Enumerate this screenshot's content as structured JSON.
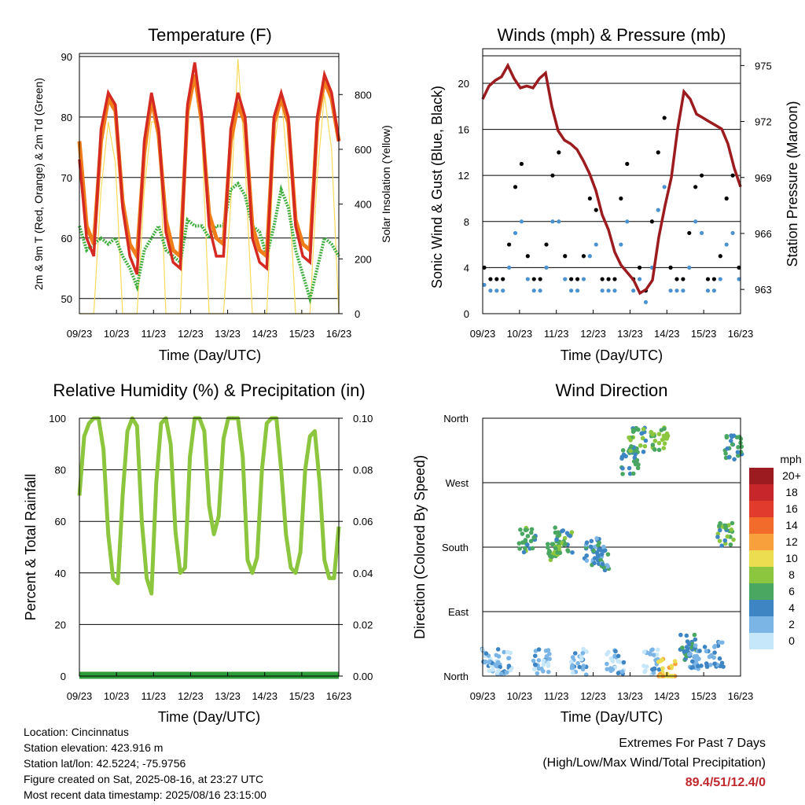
{
  "colors": {
    "temp2m": "#d42a22",
    "temp9m": "#f07d1a",
    "dewpoint": "#3fae3f",
    "insolation": "#f7da5a",
    "wind": "#4a92d0",
    "gust": "#000000",
    "pressure": "#9b1b1f",
    "humidity": "#8cc63e",
    "precip": "#2e9c3a",
    "extremes": "#c0282d"
  },
  "footer": {
    "location": "Location: Cincinnatus",
    "elevation": "Station elevation: 423.916 m",
    "latlon": "Station lat/lon: 42.5224; -75.9756",
    "created": "Figure created on Sat, 2025-08-16, at 23:27 UTC",
    "recent": "Most recent data timestamp: 2025/08/16 23:15:00"
  },
  "extremes": {
    "title": "Extremes For Past 7 Days",
    "subtitle": "(High/Low/Max Wind/Total Precipitation)",
    "values": "89.4/51/12.4/0"
  },
  "chart_data": [
    {
      "type": "line",
      "title": "Temperature (F)",
      "xlabel": "Time (Day/UTC)",
      "ylabel": "2m & 9m T (Red, Orange) & 2m Td (Green)",
      "y2label": "Solar Insolation (Yellow)",
      "x_ticks": [
        "09/23",
        "10/23",
        "11/23",
        "12/23",
        "13/23",
        "14/23",
        "15/23",
        "16/23"
      ],
      "ylim": [
        47.5,
        90.5
      ],
      "y_ticks": [
        50,
        60,
        70,
        80,
        90
      ],
      "y2lim": [
        0,
        950
      ],
      "y2_ticks": [
        0,
        200,
        400,
        600,
        800
      ],
      "grid": "horizontal",
      "series": [
        {
          "key": "temp_2m",
          "y": [
            73,
            60,
            57,
            78,
            84,
            82,
            65,
            57,
            54,
            76,
            84,
            78,
            61,
            56,
            55,
            82,
            89,
            80,
            62,
            57,
            57,
            78,
            84,
            80,
            60,
            56,
            55,
            80,
            84,
            80,
            62,
            57,
            56,
            80,
            87,
            84,
            76
          ]
        },
        {
          "key": "temp_9m",
          "y": [
            76,
            62,
            59,
            76,
            83,
            81,
            66,
            59,
            57,
            74,
            83,
            77,
            63,
            58,
            57,
            81,
            87,
            79,
            64,
            60,
            59,
            76,
            82,
            79,
            62,
            58,
            57,
            79,
            83,
            79,
            63,
            59,
            58,
            79,
            86,
            83,
            76
          ]
        },
        {
          "key": "dewpoint_2m",
          "y": [
            62,
            58,
            59,
            60,
            59,
            60,
            57,
            55,
            52,
            58,
            60,
            62,
            58,
            57,
            56,
            63,
            62,
            62,
            60,
            62,
            62,
            68,
            69,
            67,
            62,
            61,
            57,
            62,
            68,
            65,
            58,
            54,
            50,
            55,
            60,
            59,
            57
          ]
        },
        {
          "key": "solar_insolation",
          "y": [
            0,
            0,
            0,
            450,
            700,
            550,
            0,
            0,
            0,
            450,
            700,
            700,
            0,
            0,
            0,
            700,
            850,
            650,
            0,
            0,
            0,
            400,
            930,
            550,
            0,
            0,
            0,
            600,
            800,
            500,
            0,
            0,
            0,
            500,
            800,
            600,
            0
          ]
        }
      ]
    },
    {
      "type": "line",
      "title": "Winds (mph) & Pressure (mb)",
      "xlabel": "Time (Day/UTC)",
      "ylabel": "Sonic Wind & Gust (Blue, Black)",
      "y2label": "Station Pressure (Maroon)",
      "x_ticks": [
        "09/23",
        "10/23",
        "11/23",
        "12/23",
        "13/23",
        "14/23",
        "15/23",
        "16/23"
      ],
      "ylim": [
        0,
        23
      ],
      "y_ticks": [
        0,
        4,
        8,
        12,
        16,
        20
      ],
      "y2lim": [
        961.7,
        975.9
      ],
      "y2_ticks": [
        963,
        966,
        969,
        972,
        975
      ],
      "grid": "horizontal",
      "series": [
        {
          "key": "sonic_wind",
          "y": [
            2.5,
            2,
            2,
            2,
            4,
            7,
            8,
            3,
            2,
            2,
            4,
            8,
            8,
            3,
            2,
            2,
            3,
            5,
            6,
            2,
            2,
            2,
            6,
            8,
            2,
            3,
            1,
            4,
            9,
            11,
            2,
            2,
            2,
            4,
            8,
            7,
            2,
            2,
            3,
            6,
            7,
            3
          ]
        },
        {
          "key": "gust",
          "y": [
            4,
            3,
            3,
            3,
            6,
            11,
            13,
            5,
            3,
            3,
            6,
            12,
            14,
            5,
            3,
            3,
            5,
            10,
            9,
            3,
            3,
            3,
            10,
            13,
            3,
            4,
            2,
            8,
            14,
            17,
            4,
            3,
            3,
            7,
            11,
            12,
            3,
            3,
            5,
            10,
            12,
            4
          ]
        },
        {
          "key": "station_pressure",
          "y": [
            973.2,
            973.9,
            974.2,
            974.4,
            975.0,
            974.3,
            973.8,
            973.9,
            973.8,
            974.3,
            974.6,
            972.8,
            971.5,
            971.0,
            970.8,
            970.5,
            969.9,
            969.2,
            968.3,
            967.0,
            966.2,
            965.0,
            964.3,
            963.9,
            963.5,
            962.8,
            963.0,
            963.5,
            965.8,
            967.5,
            969.0,
            971.6,
            973.6,
            973.2,
            972.4,
            972.2,
            972.0,
            971.8,
            971.6,
            970.8,
            969.5,
            968.5
          ]
        }
      ]
    },
    {
      "type": "line",
      "title": "Relative Humidity (%) & Precipitation (in)",
      "xlabel": "Time (Day/UTC)",
      "ylabel": "Percent & Total Rainfall",
      "x_ticks": [
        "09/23",
        "10/23",
        "11/23",
        "12/23",
        "13/23",
        "14/23",
        "15/23",
        "16/23"
      ],
      "ylim": [
        0,
        100
      ],
      "y_ticks": [
        0,
        20,
        40,
        60,
        80,
        100
      ],
      "y2lim": [
        0,
        0.1
      ],
      "y2_ticks": [
        "0.00",
        "0.02",
        "0.04",
        "0.06",
        "0.08",
        "0.10"
      ],
      "grid": "horizontal",
      "series": [
        {
          "key": "relative_humidity",
          "y": [
            70,
            93,
            98,
            100,
            100,
            88,
            55,
            38,
            36,
            70,
            95,
            100,
            97,
            60,
            38,
            32,
            75,
            98,
            100,
            90,
            56,
            40,
            42,
            85,
            100,
            100,
            95,
            66,
            55,
            62,
            92,
            100,
            100,
            100,
            85,
            45,
            40,
            46,
            80,
            98,
            100,
            100,
            80,
            55,
            42,
            40,
            48,
            80,
            93,
            95,
            75,
            45,
            38,
            38,
            58
          ]
        },
        {
          "key": "total_precipitation",
          "y": [
            0,
            0,
            0,
            0,
            0,
            0,
            0,
            0
          ]
        }
      ]
    },
    {
      "type": "scatter",
      "title": "Wind Direction",
      "xlabel": "Time (Day/UTC)",
      "ylabel": "Direction (Colored By Speed)",
      "x_ticks": [
        "09/23",
        "10/23",
        "11/23",
        "12/23",
        "13/23",
        "14/23",
        "15/23",
        "16/23"
      ],
      "y_ticks": [
        "North",
        "East",
        "South",
        "West",
        "North"
      ],
      "ylim": [
        0,
        360
      ],
      "colorbar": {
        "label": "mph",
        "labels": [
          "20+",
          "18",
          "16",
          "14",
          "12",
          "10",
          "8",
          "6",
          "4",
          "2",
          "0"
        ],
        "colors": [
          "#9c1b20",
          "#c7272b",
          "#e03b2c",
          "#f26b2b",
          "#f8a03c",
          "#ebdd4f",
          "#8cc63e",
          "#4aa761",
          "#3e85c3",
          "#7bb5e6",
          "#c6e6f9"
        ]
      },
      "clusters": [
        {
          "x": 0.2,
          "dir": 22,
          "spd": 2
        },
        {
          "x": 0.6,
          "dir": 20,
          "spd": 2
        },
        {
          "x": 1.2,
          "dir": 190,
          "spd": 6
        },
        {
          "x": 1.6,
          "dir": 20,
          "spd": 2
        },
        {
          "x": 2.0,
          "dir": 180,
          "spd": 7
        },
        {
          "x": 2.2,
          "dir": 190,
          "spd": 6
        },
        {
          "x": 2.6,
          "dir": 20,
          "spd": 2
        },
        {
          "x": 3.0,
          "dir": 175,
          "spd": 4
        },
        {
          "x": 3.2,
          "dir": 165,
          "spd": 4
        },
        {
          "x": 3.6,
          "dir": 20,
          "spd": 2
        },
        {
          "x": 4.0,
          "dir": 300,
          "spd": 5
        },
        {
          "x": 4.2,
          "dir": 330,
          "spd": 6
        },
        {
          "x": 4.6,
          "dir": 20,
          "spd": 2
        },
        {
          "x": 4.8,
          "dir": 330,
          "spd": 7
        },
        {
          "x": 5.0,
          "dir": 8,
          "spd": 11
        },
        {
          "x": 5.6,
          "dir": 40,
          "spd": 5
        },
        {
          "x": 5.8,
          "dir": 25,
          "spd": 3
        },
        {
          "x": 6.3,
          "dir": 30,
          "spd": 3
        },
        {
          "x": 6.6,
          "dir": 200,
          "spd": 6
        },
        {
          "x": 6.8,
          "dir": 320,
          "spd": 5
        }
      ]
    }
  ]
}
